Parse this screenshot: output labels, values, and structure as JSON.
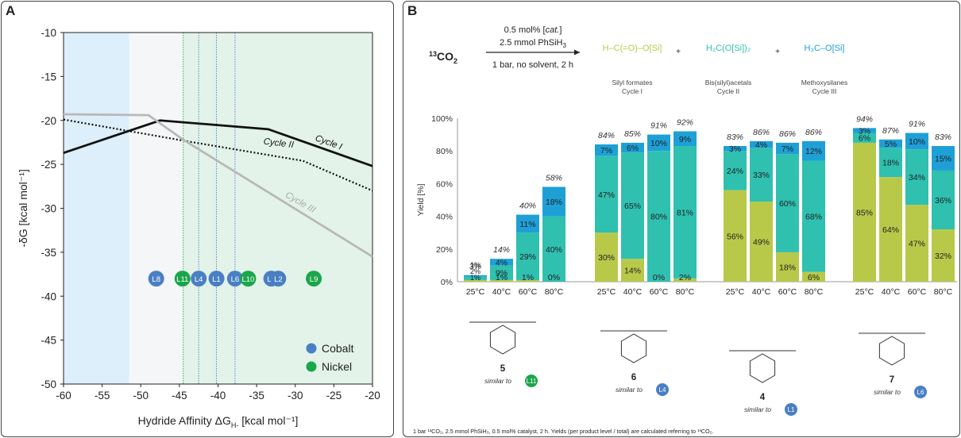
{
  "panel_a": {
    "label": "A",
    "legend": [
      {
        "name": "Cobalt",
        "color": "#4a7fc4"
      },
      {
        "name": "Nickel",
        "color": "#1aa64a"
      }
    ]
  },
  "panel_b": {
    "label": "B",
    "reaction": {
      "reactant_sup": "13",
      "reactant": "CO",
      "reactant_sub": "2",
      "conditions_top_1": "0.5 mol% [",
      "conditions_top_cat": "cat.",
      "conditions_top_2": "]",
      "conditions_mid": "2.5 mmol PhSiH",
      "conditions_mid_sub": "3",
      "conditions_bottom": "1 bar, no solvent, 2 h",
      "plus": "+"
    },
    "products": [
      {
        "name": "Silyl formates",
        "cycle": "Cycle I",
        "color": "#b8c94a"
      },
      {
        "name": "Bis(silyl)acetals",
        "cycle": "Cycle II",
        "color": "#2fc0b0"
      },
      {
        "name": "Methoxysilanes",
        "cycle": "Cycle III",
        "color": "#1ea0d6"
      }
    ],
    "catalysts": [
      {
        "number": "5",
        "similar_label": "similar to",
        "ligand": "L11",
        "ligand_color": "#1aa64a"
      },
      {
        "number": "6",
        "similar_label": "similar to",
        "ligand": "L4",
        "ligand_color": "#4a7fc4"
      },
      {
        "number": "4",
        "similar_label": "similar to",
        "ligand": "L1",
        "ligand_color": "#4a7fc4"
      },
      {
        "number": "7",
        "similar_label": "similar to",
        "ligand": "L6",
        "ligand_color": "#4a7fc4"
      }
    ],
    "footnote": "1 bar ¹³CO₂, 2.5 mmol PhSiH₃, 0.5 mol% catalyst, 2 h. Yields (per product level / total) are calculated referring to ¹³CO₂."
  },
  "chart_data": [
    {
      "type": "line",
      "xlabel": "Hydride Affinity ΔG",
      "xlabel_sub": "H-",
      "xlabel_unit": " [kcal mol⁻¹]",
      "ylabel": "-δG [kcal mol⁻¹]",
      "xlim": [
        -60,
        -20
      ],
      "ylim": [
        -50,
        -10
      ],
      "xticks": [
        -60,
        -55,
        -50,
        -45,
        -40,
        -35,
        -30,
        -25,
        -20
      ],
      "yticks": [
        -10,
        -15,
        -20,
        -25,
        -30,
        -35,
        -40,
        -45,
        -50
      ],
      "grid": false,
      "background_regions": [
        {
          "x": [
            -60,
            -51.5
          ],
          "color": "#dcefFa"
        },
        {
          "x": [
            -51.5,
            -44.5
          ],
          "color": "#f4f6f7"
        },
        {
          "x": [
            -44.5,
            -20
          ],
          "color": "#e3f3e9"
        }
      ],
      "vertical_lines": [
        {
          "x": -44.5,
          "color": "#1aa64a"
        },
        {
          "x": -42.5,
          "color": "#4a7fc4"
        },
        {
          "x": -40.2,
          "color": "#4a7fc4"
        },
        {
          "x": -37.8,
          "color": "#4a7fc4"
        }
      ],
      "series": [
        {
          "name": "Cycle I",
          "color": "#111111",
          "style": "solid",
          "x": [
            -60,
            -47.5,
            -33.5,
            -20
          ],
          "y": [
            -23.7,
            -20,
            -21,
            -25.2
          ]
        },
        {
          "name": "Cycle II",
          "color": "#111111",
          "style": "dotted",
          "x": [
            -60,
            -44.5,
            -29,
            -20
          ],
          "y": [
            -19.9,
            -22.3,
            -24.6,
            -28
          ]
        },
        {
          "name": "Cycle III",
          "color": "#b8b8b8",
          "style": "solid",
          "x": [
            -60,
            -49,
            -44.5,
            -20
          ],
          "y": [
            -19.3,
            -19.4,
            -22.2,
            -35.5
          ]
        }
      ],
      "points": [
        {
          "label": "L8",
          "x": -48,
          "y": -38,
          "metal": "Cobalt"
        },
        {
          "label": "L11",
          "x": -44.6,
          "y": -38,
          "metal": "Nickel"
        },
        {
          "label": "L4",
          "x": -42.5,
          "y": -38,
          "metal": "Cobalt"
        },
        {
          "label": "L1",
          "x": -40.2,
          "y": -38,
          "metal": "Cobalt"
        },
        {
          "label": "L6",
          "x": -37.8,
          "y": -38,
          "metal": "Cobalt"
        },
        {
          "label": "L10",
          "x": -36.1,
          "y": -38,
          "metal": "Nickel"
        },
        {
          "label": "L7",
          "x": -33.1,
          "y": -38,
          "metal": "Cobalt"
        },
        {
          "label": "L2",
          "x": -32.2,
          "y": -38,
          "metal": "Cobalt"
        },
        {
          "label": "L9",
          "x": -27.6,
          "y": -38,
          "metal": "Nickel"
        }
      ]
    },
    {
      "type": "bar",
      "stacked": true,
      "ylabel": "Yield [%]",
      "ylim": [
        0,
        100
      ],
      "yticks": [
        "0%",
        "20%",
        "40%",
        "60%",
        "80%",
        "100%"
      ],
      "grid": false,
      "categories": [
        "25°C",
        "40°C",
        "60°C",
        "80°C"
      ],
      "groups": [
        {
          "catalyst": "5",
          "totals": [
            "3%",
            "14%",
            "40%",
            "58%"
          ],
          "formate": [
            1,
            1,
            1,
            0
          ],
          "acetal": [
            2,
            9,
            29,
            40
          ],
          "methoxy": [
            1,
            4,
            11,
            18
          ],
          "labels": {
            "formate": [
              "1%",
              "1%",
              "1%",
              "0%"
            ],
            "acetal": [
              "2%",
              "9%",
              "29%",
              "40%"
            ],
            "methoxy": [
              "1%",
              "4%",
              "11%",
              "18%"
            ]
          }
        },
        {
          "catalyst": "6",
          "totals": [
            "84%",
            "85%",
            "91%",
            "92%"
          ],
          "formate": [
            30,
            14,
            0,
            2
          ],
          "acetal": [
            47,
            65,
            80,
            81
          ],
          "methoxy": [
            7,
            6,
            10,
            9
          ],
          "labels": {
            "formate": [
              "30%",
              "14%",
              "0%",
              "2%"
            ],
            "acetal": [
              "47%",
              "65%",
              "80%",
              "81%"
            ],
            "methoxy": [
              "7%",
              "6%",
              "10%",
              "9%"
            ]
          }
        },
        {
          "catalyst": "4",
          "totals": [
            "83%",
            "86%",
            "86%",
            "86%"
          ],
          "formate": [
            56,
            49,
            18,
            6
          ],
          "acetal": [
            24,
            33,
            60,
            68
          ],
          "methoxy": [
            3,
            4,
            7,
            12
          ],
          "labels": {
            "formate": [
              "56%",
              "49%",
              "18%",
              "6%"
            ],
            "acetal": [
              "24%",
              "33%",
              "60%",
              "68%"
            ],
            "methoxy": [
              "3%",
              "4%",
              "7%",
              "12%"
            ]
          }
        },
        {
          "catalyst": "7",
          "totals": [
            "94%",
            "87%",
            "91%",
            "83%"
          ],
          "formate": [
            85,
            64,
            47,
            32
          ],
          "acetal": [
            6,
            18,
            34,
            36
          ],
          "methoxy": [
            3,
            5,
            10,
            15
          ],
          "labels": {
            "formate": [
              "85%",
              "64%",
              "47%",
              "32%"
            ],
            "acetal": [
              "6%",
              "18%",
              "34%",
              "36%"
            ],
            "methoxy": [
              "3%",
              "5%",
              "10%",
              "15%"
            ]
          }
        }
      ],
      "colors": {
        "formate": "#b8c94a",
        "acetal": "#2fc0b0",
        "methoxy": "#1ea0d6"
      }
    }
  ]
}
